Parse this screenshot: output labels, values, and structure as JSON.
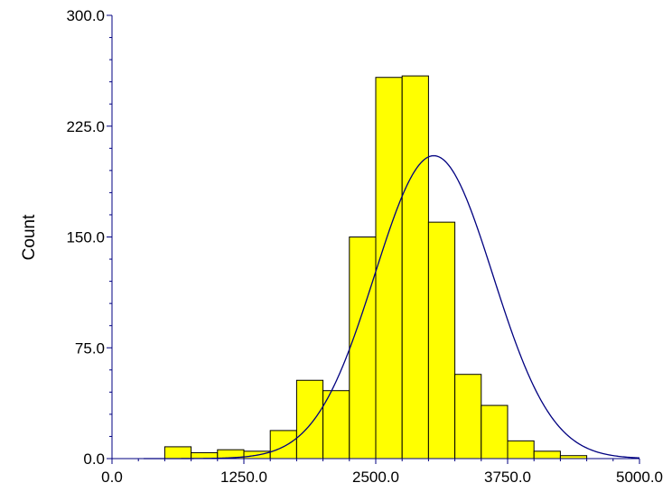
{
  "chart_data": {
    "type": "bar",
    "title": "",
    "xlabel": "",
    "ylabel": "Count",
    "xlim": [
      0,
      5000
    ],
    "ylim": [
      0,
      300
    ],
    "x_ticks": [
      "0.0",
      "1250.0",
      "2500.0",
      "3750.0",
      "5000.0"
    ],
    "y_ticks": [
      "0.0",
      "75.0",
      "150.0",
      "225.0",
      "300.0"
    ],
    "grid": false,
    "bin_width": 250,
    "bins": [
      {
        "start": 500,
        "end": 750,
        "count": 8
      },
      {
        "start": 750,
        "end": 1000,
        "count": 4
      },
      {
        "start": 1000,
        "end": 1250,
        "count": 6
      },
      {
        "start": 1250,
        "end": 1500,
        "count": 5
      },
      {
        "start": 1500,
        "end": 1750,
        "count": 19
      },
      {
        "start": 1750,
        "end": 2000,
        "count": 53
      },
      {
        "start": 2000,
        "end": 2250,
        "count": 46
      },
      {
        "start": 2250,
        "end": 2500,
        "count": 150
      },
      {
        "start": 2500,
        "end": 2750,
        "count": 258
      },
      {
        "start": 2750,
        "end": 3000,
        "count": 259
      },
      {
        "start": 3000,
        "end": 3250,
        "count": 160
      },
      {
        "start": 3250,
        "end": 3500,
        "count": 57
      },
      {
        "start": 3500,
        "end": 3750,
        "count": 36
      },
      {
        "start": 3750,
        "end": 4000,
        "count": 12
      },
      {
        "start": 4000,
        "end": 4250,
        "count": 5
      },
      {
        "start": 4250,
        "end": 4500,
        "count": 2
      }
    ],
    "fitted_curve": {
      "type": "normal",
      "mean": 3050,
      "peak_count": 205,
      "sd": 560
    },
    "colors": {
      "bar_fill": "#ffff00",
      "bar_stroke": "#000000",
      "curve": "#000080",
      "axis": "#000080"
    }
  }
}
